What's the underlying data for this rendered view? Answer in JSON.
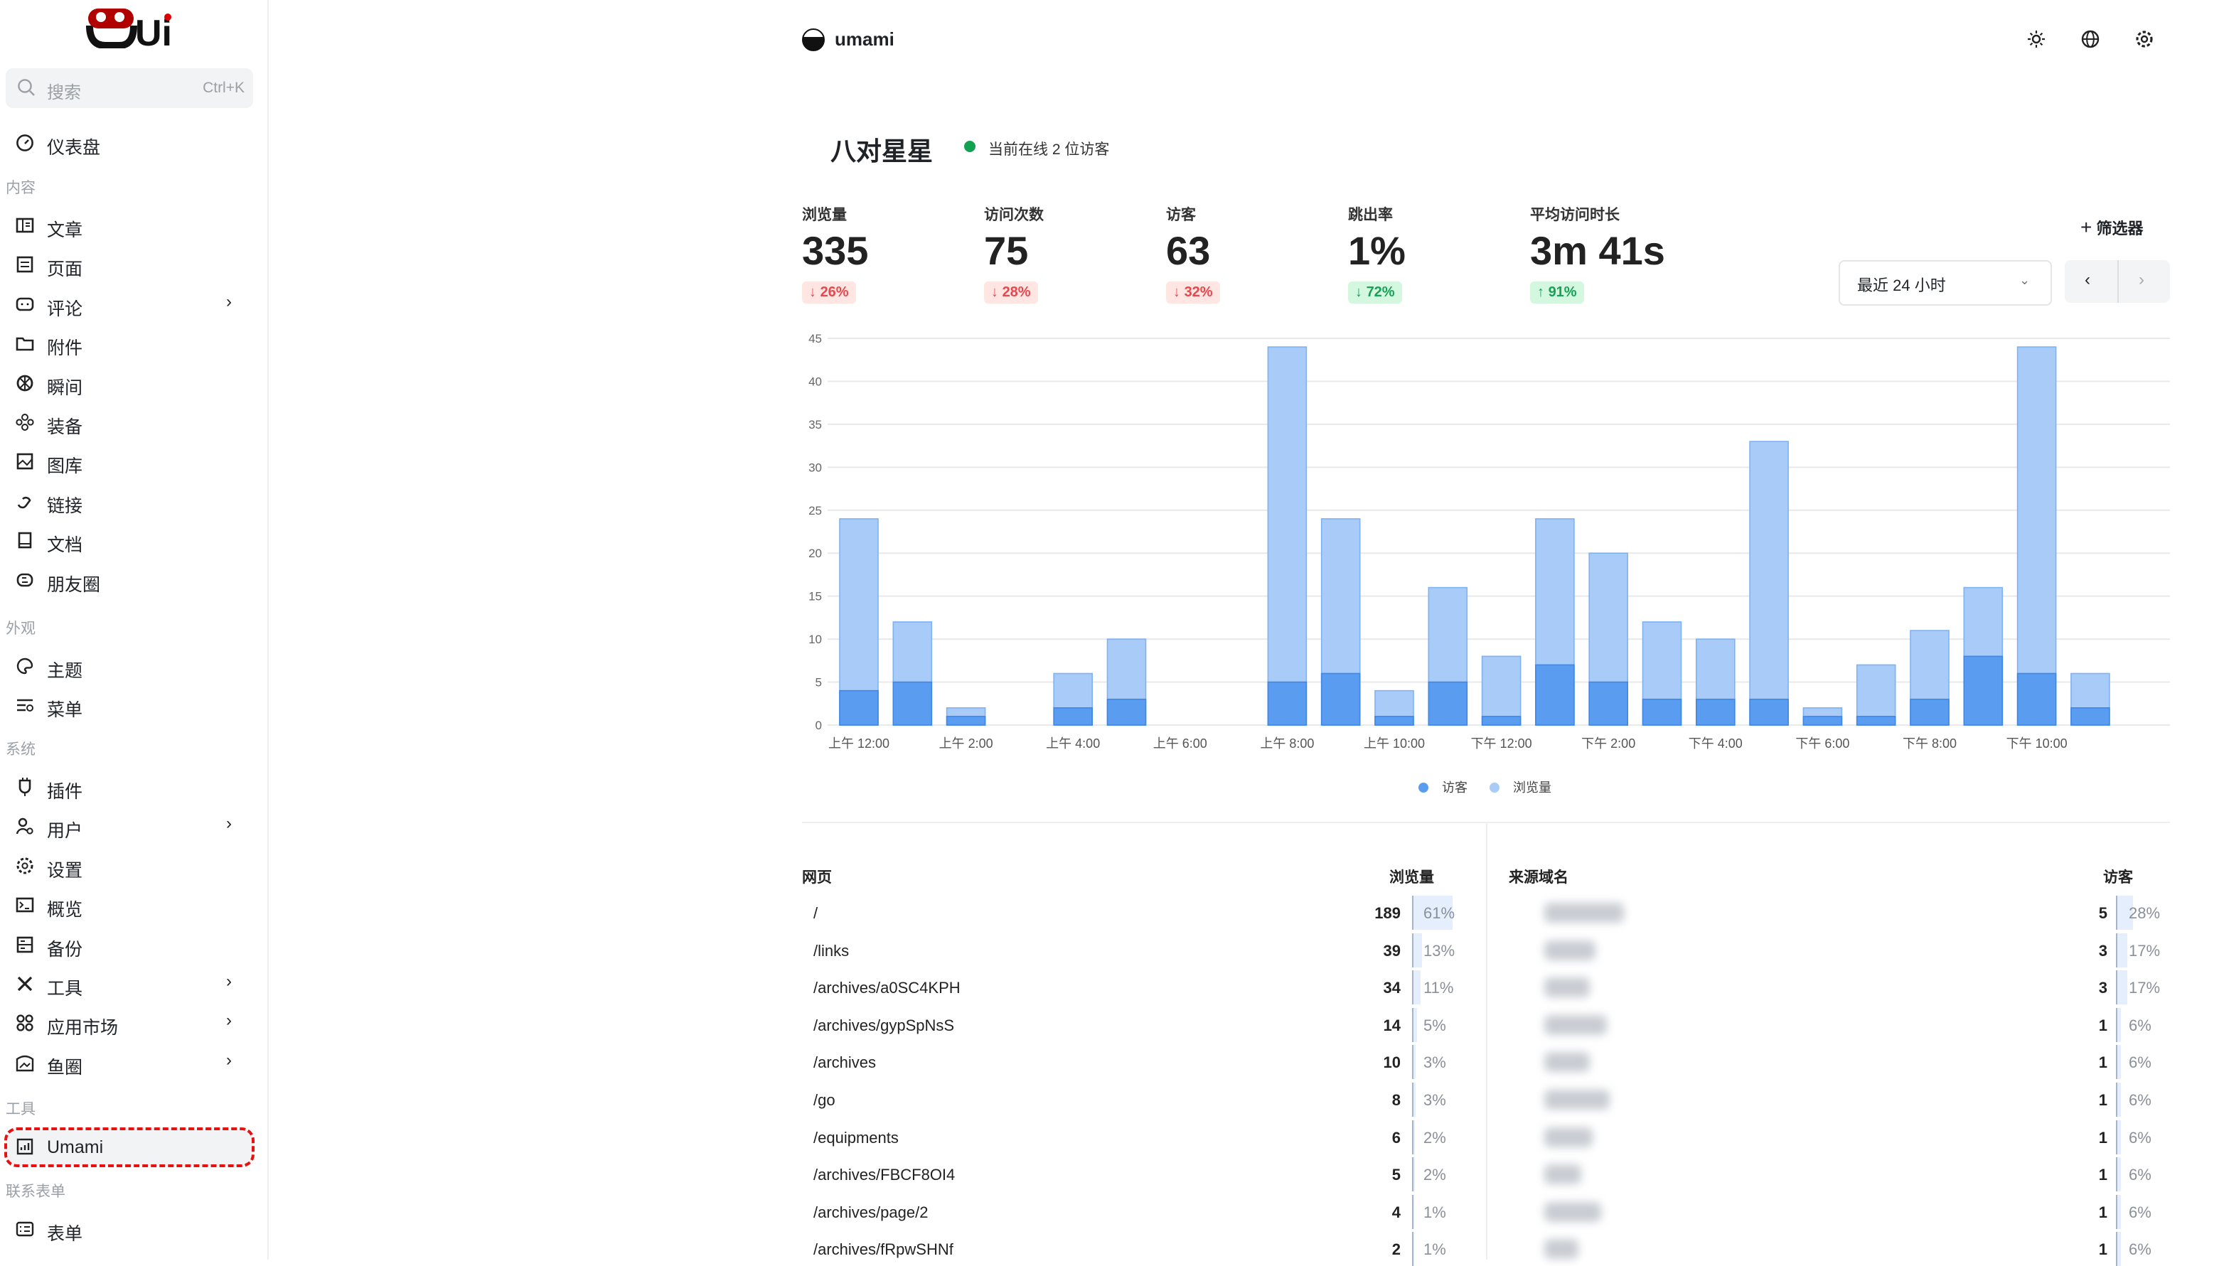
{
  "sidebar": {
    "logo_text": "Ui",
    "search": {
      "placeholder": "搜索",
      "shortcut": "Ctrl+K"
    },
    "dashboard": "仪表盘",
    "sections": [
      {
        "title": "内容",
        "items": [
          {
            "label": "文章",
            "icon": "article-icon"
          },
          {
            "label": "页面",
            "icon": "page-icon"
          },
          {
            "label": "评论",
            "icon": "comment-icon",
            "has_children": true
          },
          {
            "label": "附件",
            "icon": "folder-icon"
          },
          {
            "label": "瞬间",
            "icon": "aperture-icon"
          },
          {
            "label": "装备",
            "icon": "equipment-icon"
          },
          {
            "label": "图库",
            "icon": "image-icon"
          },
          {
            "label": "链接",
            "icon": "link-icon"
          },
          {
            "label": "文档",
            "icon": "book-icon"
          },
          {
            "label": "朋友圈",
            "icon": "blog-icon"
          }
        ]
      },
      {
        "title": "外观",
        "items": [
          {
            "label": "主题",
            "icon": "palette-icon"
          },
          {
            "label": "菜单",
            "icon": "menu-settings-icon"
          }
        ]
      },
      {
        "title": "系统",
        "items": [
          {
            "label": "插件",
            "icon": "plug-icon"
          },
          {
            "label": "用户",
            "icon": "user-settings-icon",
            "has_children": true
          },
          {
            "label": "设置",
            "icon": "gear-icon"
          },
          {
            "label": "概览",
            "icon": "terminal-icon"
          },
          {
            "label": "备份",
            "icon": "backup-icon"
          },
          {
            "label": "工具",
            "icon": "tools-icon",
            "has_children": true
          },
          {
            "label": "应用市场",
            "icon": "apps-icon",
            "has_children": true
          },
          {
            "label": "鱼圈",
            "icon": "store-icon",
            "has_children": true
          }
        ]
      },
      {
        "title": "工具",
        "items": [
          {
            "label": "Umami",
            "icon": "chart-icon",
            "active": true
          }
        ]
      },
      {
        "title": "联系表单",
        "items": [
          {
            "label": "表单",
            "icon": "form-icon"
          }
        ]
      }
    ]
  },
  "header": {
    "app_name": "umami",
    "icons": [
      "sun-icon",
      "globe-icon",
      "gear-icon"
    ]
  },
  "website": {
    "name": "八对星星",
    "online": "当前在线 2 位访客",
    "online_color": "#12a150"
  },
  "metrics": [
    {
      "label": "浏览量",
      "value": "335",
      "change": "26%",
      "direction": "down",
      "trend": "negative"
    },
    {
      "label": "访问次数",
      "value": "75",
      "change": "28%",
      "direction": "down",
      "trend": "negative"
    },
    {
      "label": "访客",
      "value": "63",
      "change": "32%",
      "direction": "down",
      "trend": "negative"
    },
    {
      "label": "跳出率",
      "value": "1%",
      "change": "72%",
      "direction": "down",
      "trend": "positive"
    },
    {
      "label": "平均访问时长",
      "value": "3m 41s",
      "change": "91%",
      "direction": "up",
      "trend": "positive"
    }
  ],
  "controls": {
    "filter_label": "筛选器",
    "range_selected": "最近 24 小时"
  },
  "chart_data": {
    "type": "bar",
    "stacked": "overlay",
    "categories": [
      "上午 12:00",
      "上午 1:00",
      "上午 2:00",
      "上午 3:00",
      "上午 4:00",
      "上午 5:00",
      "上午 6:00",
      "上午 7:00",
      "上午 8:00",
      "上午 9:00",
      "上午 10:00",
      "上午 11:00",
      "下午 12:00",
      "下午 1:00",
      "下午 2:00",
      "下午 3:00",
      "下午 4:00",
      "下午 5:00",
      "下午 6:00",
      "下午 7:00",
      "下午 8:00",
      "下午 9:00",
      "下午 10:00",
      "下午 11:00"
    ],
    "tick_labels": [
      "上午 12:00",
      "上午 2:00",
      "上午 4:00",
      "上午 6:00",
      "上午 8:00",
      "上午 10:00",
      "下午 12:00",
      "下午 2:00",
      "下午 4:00",
      "下午 6:00",
      "下午 8:00",
      "下午 10:00"
    ],
    "series": [
      {
        "name": "访客",
        "color": "#5a9cf0",
        "values": [
          4,
          5,
          1,
          0,
          2,
          3,
          0,
          0,
          5,
          6,
          1,
          5,
          1,
          7,
          5,
          3,
          3,
          3,
          1,
          1,
          3,
          8,
          6,
          2
        ]
      },
      {
        "name": "浏览量",
        "color": "#a9cbf7",
        "values": [
          24,
          12,
          2,
          0,
          6,
          10,
          0,
          0,
          44,
          24,
          4,
          16,
          8,
          24,
          20,
          12,
          10,
          33,
          2,
          7,
          11,
          16,
          44,
          6
        ]
      }
    ],
    "ylim": [
      0,
      45
    ],
    "yticks": [
      0,
      5,
      10,
      15,
      20,
      25,
      30,
      35,
      40,
      45
    ],
    "grid": true,
    "legend": "bottom"
  },
  "pages_table": {
    "title": "网页",
    "metric": "浏览量",
    "rows": [
      {
        "label": "/",
        "value": "189",
        "pct": "61%",
        "share": 61
      },
      {
        "label": "/links",
        "value": "39",
        "pct": "13%",
        "share": 13
      },
      {
        "label": "/archives/a0SC4KPH",
        "value": "34",
        "pct": "11%",
        "share": 11
      },
      {
        "label": "/archives/gypSpNsS",
        "value": "14",
        "pct": "5%",
        "share": 5
      },
      {
        "label": "/archives",
        "value": "10",
        "pct": "3%",
        "share": 3
      },
      {
        "label": "/go",
        "value": "8",
        "pct": "3%",
        "share": 3
      },
      {
        "label": "/equipments",
        "value": "6",
        "pct": "2%",
        "share": 2
      },
      {
        "label": "/archives/FBCF8OI4",
        "value": "5",
        "pct": "2%",
        "share": 2
      },
      {
        "label": "/archives/page/2",
        "value": "4",
        "pct": "1%",
        "share": 1
      },
      {
        "label": "/archives/fRpwSHNf",
        "value": "2",
        "pct": "1%",
        "share": 1
      }
    ]
  },
  "referrers_table": {
    "title": "来源域名",
    "metric": "访客",
    "rows": [
      {
        "value": "5",
        "pct": "28%",
        "share": 28
      },
      {
        "value": "3",
        "pct": "17%",
        "share": 17
      },
      {
        "value": "3",
        "pct": "17%",
        "share": 17
      },
      {
        "value": "1",
        "pct": "6%",
        "share": 6
      },
      {
        "value": "1",
        "pct": "6%",
        "share": 6
      },
      {
        "value": "1",
        "pct": "6%",
        "share": 6
      },
      {
        "value": "1",
        "pct": "6%",
        "share": 6
      },
      {
        "value": "1",
        "pct": "6%",
        "share": 6
      },
      {
        "value": "1",
        "pct": "6%",
        "share": 6
      },
      {
        "value": "1",
        "pct": "6%",
        "share": 6
      }
    ]
  }
}
